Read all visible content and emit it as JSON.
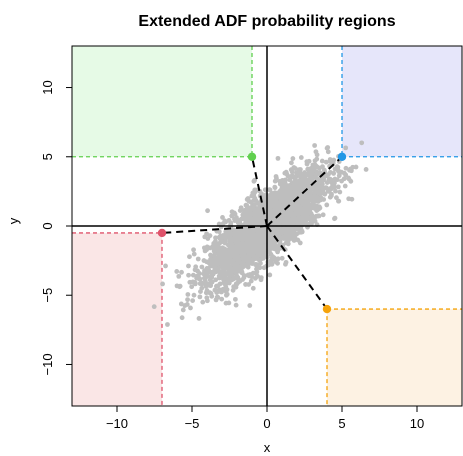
{
  "chart_data": {
    "type": "scatter",
    "title": "Extended ADF probability regions",
    "xlabel": "x",
    "ylabel": "y",
    "xlim": [
      -13,
      13
    ],
    "ylim": [
      -13,
      13
    ],
    "x_ticks": [
      -10,
      -5,
      0,
      5,
      10
    ],
    "y_ticks": [
      -10,
      -5,
      0,
      5,
      10
    ],
    "x_tick_labels": [
      "−10",
      "−5",
      "0",
      "5",
      "10"
    ],
    "y_tick_labels": [
      "−10",
      "−5",
      "0",
      "5",
      "10"
    ],
    "grid": false,
    "point_color": "#bebebe",
    "cloud": {
      "center": [
        0,
        0
      ],
      "sd_x": 2.0,
      "sd_y": 2.0,
      "correlation": 0.8,
      "n": 3000
    },
    "reference_lines": {
      "x": 0,
      "y": 0,
      "color": "#000000"
    },
    "regions": [
      {
        "quadrant": "upper-left",
        "corner": [
          -1,
          5
        ],
        "fill": "#e6fae6",
        "color": "#61d04f"
      },
      {
        "quadrant": "upper-right",
        "corner": [
          5,
          5
        ],
        "fill": "#e6e6fa",
        "color": "#2297e6"
      },
      {
        "quadrant": "lower-left",
        "corner": [
          -7,
          -0.5
        ],
        "fill": "#fae6e6",
        "color": "#df536b"
      },
      {
        "quadrant": "lower-right",
        "corner": [
          4,
          -6
        ],
        "fill": "#fdf2e3",
        "color": "#f5a30a"
      }
    ],
    "connectors": {
      "from": [
        0,
        0
      ],
      "color": "#000000",
      "style": "dashed"
    }
  }
}
